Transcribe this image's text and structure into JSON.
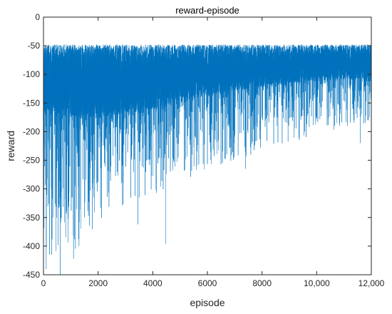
{
  "chart_data": {
    "type": "line",
    "title": "reward-episode",
    "xlabel": "episode",
    "ylabel": "reward",
    "xlim": [
      0,
      12000
    ],
    "ylim": [
      -450,
      0
    ],
    "x_ticks": [
      0,
      2000,
      4000,
      6000,
      8000,
      10000,
      12000
    ],
    "x_tick_labels": [
      "0",
      "2000",
      "4000",
      "6000",
      "8000",
      "10,000",
      "12,000"
    ],
    "y_ticks": [
      0,
      -50,
      -100,
      -150,
      -200,
      -250,
      -300,
      -350,
      -400,
      -450
    ],
    "y_tick_labels": [
      "0",
      "-50",
      "-100",
      "-150",
      "-200",
      "-250",
      "-300",
      "-350",
      "-400",
      "-450"
    ],
    "grid": false,
    "legend": "none",
    "series": [
      {
        "color": "#0072bd",
        "x_step": 1,
        "x_start": 1,
        "n_points": 12000,
        "upper_envelope": {
          "x": [
            0,
            2000,
            4000,
            6000,
            8000,
            10000,
            12000
          ],
          "y": [
            -48,
            -48,
            -48,
            -48,
            -48,
            -48,
            -48
          ]
        },
        "band_upper": {
          "x": [
            0,
            2000,
            4000,
            6000,
            8000,
            10000,
            12000
          ],
          "y": [
            -60,
            -60,
            -60,
            -58,
            -58,
            -56,
            -56
          ]
        },
        "band_lower": {
          "x": [
            0,
            2000,
            4000,
            6000,
            8000,
            10000,
            12000
          ],
          "y": [
            -170,
            -175,
            -160,
            -135,
            -120,
            -110,
            -105
          ]
        },
        "lower_envelope": {
          "x": [
            0,
            1000,
            2000,
            3000,
            4000,
            5000,
            6000,
            7000,
            8000,
            9000,
            10000,
            11000,
            12000
          ],
          "y": [
            -440,
            -420,
            -360,
            -330,
            -310,
            -290,
            -270,
            -250,
            -235,
            -220,
            -205,
            -195,
            -185
          ]
        },
        "notable_minima": [
          {
            "x": 100,
            "y": -440
          },
          {
            "x": 610,
            "y": -450
          },
          {
            "x": 1100,
            "y": -422
          },
          {
            "x": 1300,
            "y": -400
          },
          {
            "x": 3460,
            "y": -362
          },
          {
            "x": 4480,
            "y": -396
          },
          {
            "x": 7400,
            "y": -265
          },
          {
            "x": 11600,
            "y": -220
          }
        ]
      }
    ]
  }
}
